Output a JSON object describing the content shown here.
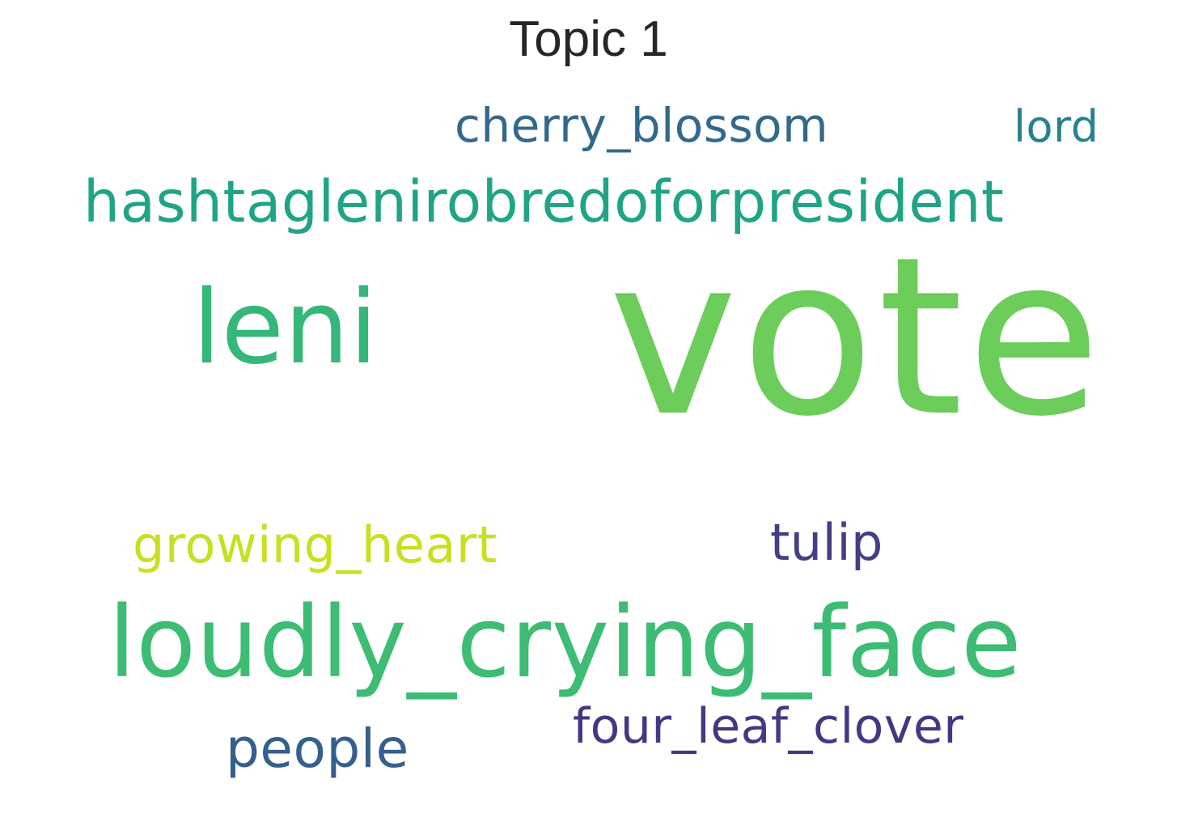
{
  "title": "Topic 1",
  "words": [
    {
      "id": "cherry",
      "text": "cherry_blossom",
      "color": "#31688e"
    },
    {
      "id": "lord",
      "text": "lord",
      "color": "#26828e"
    },
    {
      "id": "hash",
      "text": "hashtaglenirobredoforpresident",
      "color": "#20a486"
    },
    {
      "id": "leni",
      "text": "leni",
      "color": "#35b779"
    },
    {
      "id": "vote",
      "text": "vote",
      "color": "#6ccd5a"
    },
    {
      "id": "growing",
      "text": "growing_heart",
      "color": "#c8e020"
    },
    {
      "id": "tulip",
      "text": "tulip",
      "color": "#433e85"
    },
    {
      "id": "loudly",
      "text": "loudly_crying_face",
      "color": "#3dbc74"
    },
    {
      "id": "four",
      "text": "four_leaf_clover",
      "color": "#453781"
    },
    {
      "id": "people",
      "text": "people",
      "color": "#355f8d"
    }
  ]
}
